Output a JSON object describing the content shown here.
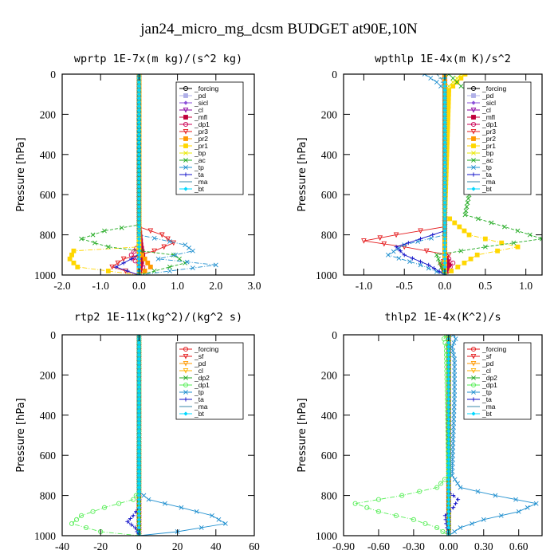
{
  "page_title": "jan24_micro_mg_dcsm  BUDGET at90E,10N",
  "colors": {
    "forcing": "#000000",
    "pd": "#b0b0e8",
    "sicl": "#8a4fd8",
    "cl": "#8a00a0",
    "mfl": "#c0003a",
    "dp1": "#cc0055",
    "pr3": "#e41a1c",
    "pr2": "#ff9900",
    "pr1": "#ffd700",
    "bp": "#e8e800",
    "ac": "#22aa22",
    "tp": "#1f8fcf",
    "ta": "#1010c8",
    "ma": "#3a8aaa",
    "bt": "#00d8ff",
    "sf": "#e41a1c",
    "cl_b": "#ffb000",
    "dp2": "#22aa22",
    "dp1_b": "#55ee55"
  },
  "chart_data": [
    {
      "type": "line",
      "title": "wprtp  1E-7x(m kg)/(s^2 kg)",
      "ylabel": "Pressure [hPa]",
      "xlim": [
        -2.0,
        3.0
      ],
      "ylim": [
        1000,
        0
      ],
      "xticks": [
        -2.0,
        -1.0,
        0.0,
        1.0,
        2.0,
        3.0
      ],
      "xtick_labels": [
        "-2.0",
        "-1.0",
        "0.0",
        "1.0",
        "2.0",
        "3.0"
      ],
      "yticks": [
        0,
        200,
        400,
        600,
        800,
        1000
      ],
      "ytick_labels": [
        "0",
        "200",
        "400",
        "600",
        "800",
        "1000"
      ],
      "legend_position": "top-right",
      "series": [
        {
          "name": "_forcing",
          "color": "#000000",
          "marker": "o",
          "p": [
            0,
            1000
          ],
          "v": [
            0,
            0
          ]
        },
        {
          "name": "_pd",
          "color": "#b0b0e8",
          "marker": "s",
          "p": [
            0,
            1000
          ],
          "v": [
            0,
            0
          ]
        },
        {
          "name": "_sicl",
          "color": "#8a4fd8",
          "marker": "d",
          "p": [
            0,
            1000
          ],
          "v": [
            0,
            0
          ]
        },
        {
          "name": "_cl",
          "color": "#8a00a0",
          "marker": "t",
          "p": [
            0,
            1000
          ],
          "v": [
            0,
            0
          ]
        },
        {
          "name": "_mfl",
          "color": "#c0003a",
          "marker": "s",
          "p": [
            0,
            750,
            850,
            900,
            950,
            1000
          ],
          "v": [
            0,
            0,
            0.05,
            0.1,
            0.05,
            0
          ]
        },
        {
          "name": "_dp1",
          "color": "#cc0055",
          "marker": "o",
          "p": [
            0,
            850,
            900,
            930,
            960,
            1000
          ],
          "v": [
            0,
            0,
            -0.2,
            -0.1,
            0.1,
            0
          ]
        },
        {
          "name": "_pr3",
          "color": "#e41a1c",
          "marker": "t",
          "p": [
            0,
            760,
            800,
            840,
            880,
            920,
            960,
            1000
          ],
          "v": [
            0,
            0,
            0.6,
            0.9,
            0.4,
            -0.4,
            -0.7,
            0
          ]
        },
        {
          "name": "_pr2",
          "color": "#ff9900",
          "marker": "s",
          "p": [
            0,
            880,
            920,
            960,
            1000
          ],
          "v": [
            0,
            0,
            0.15,
            0.3,
            0
          ]
        },
        {
          "name": "_pr1",
          "color": "#ffd700",
          "marker": "s",
          "p": [
            0,
            860,
            880,
            920,
            960,
            1000
          ],
          "v": [
            0,
            0,
            -1.7,
            -1.8,
            -1.6,
            0
          ]
        },
        {
          "name": "_bp",
          "color": "#e8e800",
          "marker": "x",
          "p": [
            0,
            1000
          ],
          "v": [
            0,
            0
          ]
        },
        {
          "name": "_ac",
          "color": "#22aa22",
          "marker": "x",
          "p": [
            0,
            750,
            780,
            820,
            860,
            900,
            940,
            1000
          ],
          "v": [
            0,
            0,
            -0.9,
            -1.5,
            -0.8,
            0.9,
            1.2,
            0
          ]
        },
        {
          "name": "_tp",
          "color": "#1f8fcf",
          "marker": "x",
          "p": [
            0,
            800,
            850,
            880,
            920,
            950,
            980,
            1000
          ],
          "v": [
            0,
            0,
            1.2,
            1.4,
            0.5,
            2.0,
            0.8,
            0
          ]
        },
        {
          "name": "_ta",
          "color": "#1010c8",
          "marker": "+",
          "p": [
            0,
            900,
            960,
            1000
          ],
          "v": [
            0,
            0,
            -0.6,
            0
          ]
        },
        {
          "name": "_ma",
          "color": "#3a8aaa",
          "marker": "-",
          "p": [
            0,
            1000
          ],
          "v": [
            0,
            0
          ]
        },
        {
          "name": "_bt",
          "color": "#00d8ff",
          "marker": "d",
          "p": [
            0,
            1000
          ],
          "v": [
            0,
            0
          ]
        }
      ]
    },
    {
      "type": "line",
      "title": "wpthlp  1E-4x(m K)/s^2",
      "ylabel": "Pressure [hPa]",
      "xlim": [
        -1.25,
        1.2
      ],
      "ylim": [
        1000,
        0
      ],
      "xticks": [
        -1.0,
        -0.5,
        0.0,
        0.5,
        1.0
      ],
      "xtick_labels": [
        "-1.0",
        "-0.5",
        "0.0",
        "0.5",
        "1.0"
      ],
      "yticks": [
        0,
        200,
        400,
        600,
        800,
        1000
      ],
      "ytick_labels": [
        "0",
        "200",
        "400",
        "600",
        "800",
        "1000"
      ],
      "legend_position": "top-right",
      "series": [
        {
          "name": "_forcing",
          "color": "#000000",
          "marker": "o",
          "p": [
            0,
            1000
          ],
          "v": [
            0,
            0
          ]
        },
        {
          "name": "_pd",
          "color": "#b0b0e8",
          "marker": "s",
          "p": [
            0,
            1000
          ],
          "v": [
            0,
            0
          ]
        },
        {
          "name": "_sicl",
          "color": "#8a4fd8",
          "marker": "d",
          "p": [
            0,
            1000
          ],
          "v": [
            0,
            0
          ]
        },
        {
          "name": "_cl",
          "color": "#8a00a0",
          "marker": "t",
          "p": [
            0,
            1000
          ],
          "v": [
            0,
            0
          ]
        },
        {
          "name": "_mfl",
          "color": "#c0003a",
          "marker": "s",
          "p": [
            0,
            900,
            950,
            1000
          ],
          "v": [
            0,
            0,
            0.05,
            0
          ]
        },
        {
          "name": "_dp1",
          "color": "#cc0055",
          "marker": "o",
          "p": [
            0,
            900,
            940,
            1000
          ],
          "v": [
            0,
            0,
            0.1,
            0
          ]
        },
        {
          "name": "_pr3",
          "color": "#e41a1c",
          "marker": "t",
          "p": [
            0,
            760,
            800,
            830,
            860,
            900,
            950,
            1000
          ],
          "v": [
            0,
            0,
            -0.6,
            -1.0,
            -0.5,
            0.05,
            -0.05,
            0
          ]
        },
        {
          "name": "_pr2",
          "color": "#ff9900",
          "marker": "s",
          "p": [
            0,
            1000
          ],
          "v": [
            0,
            0
          ]
        },
        {
          "name": "_pr1",
          "color": "#ffd700",
          "marker": "s",
          "p": [
            0,
            40,
            80,
            700,
            800,
            860,
            900,
            1000
          ],
          "v": [
            0.25,
            0.15,
            0.05,
            0,
            0.3,
            0.9,
            0.4,
            0
          ]
        },
        {
          "name": "_bp",
          "color": "#e8e800",
          "marker": "x",
          "p": [
            0,
            40,
            80,
            1000
          ],
          "v": [
            0.2,
            0.1,
            0,
            0
          ]
        },
        {
          "name": "_ac",
          "color": "#22aa22",
          "marker": "x",
          "p": [
            0,
            60,
            120,
            200,
            300,
            450,
            600,
            700,
            780,
            820,
            860,
            900,
            1000
          ],
          "v": [
            0.05,
            0.2,
            0.4,
            0.6,
            0.4,
            0.35,
            0.3,
            0.25,
            0.9,
            1.2,
            0.5,
            -0.1,
            0
          ]
        },
        {
          "name": "_tp",
          "color": "#1f8fcf",
          "marker": "x",
          "p": [
            0,
            40,
            80,
            800,
            850,
            900,
            950,
            1000
          ],
          "v": [
            -0.25,
            -0.1,
            0,
            0,
            -0.5,
            -0.7,
            -0.3,
            0
          ]
        },
        {
          "name": "_ta",
          "color": "#1010c8",
          "marker": "+",
          "p": [
            0,
            780,
            820,
            860,
            900,
            950,
            1000
          ],
          "v": [
            0,
            0,
            -0.3,
            -0.6,
            -0.5,
            -0.2,
            0
          ]
        },
        {
          "name": "_ma",
          "color": "#3a8aaa",
          "marker": "-",
          "p": [
            0,
            20,
            60,
            1000
          ],
          "v": [
            -0.1,
            -0.05,
            0,
            0
          ]
        },
        {
          "name": "_bt",
          "color": "#00d8ff",
          "marker": "d",
          "p": [
            0,
            1000
          ],
          "v": [
            0,
            0
          ]
        }
      ]
    },
    {
      "type": "line",
      "title": "rtp2  1E-11x(kg^2)/(kg^2 s)",
      "ylabel": "Pressure [hPa]",
      "xlim": [
        -40,
        60
      ],
      "ylim": [
        1000,
        0
      ],
      "xticks": [
        -40,
        -20,
        0,
        20,
        40,
        60
      ],
      "xtick_labels": [
        "-40",
        "-20",
        "0",
        "20",
        "40",
        "60"
      ],
      "yticks": [
        0,
        200,
        400,
        600,
        800,
        1000
      ],
      "ytick_labels": [
        "0",
        "200",
        "400",
        "600",
        "800",
        "1000"
      ],
      "legend_position": "top-right",
      "series": [
        {
          "name": "_forcing",
          "color": "#e41a1c",
          "marker": "o",
          "p": [
            0,
            1000
          ],
          "v": [
            0,
            0
          ]
        },
        {
          "name": "_sf",
          "color": "#e41a1c",
          "marker": "t",
          "p": [
            0,
            1000
          ],
          "v": [
            0,
            0
          ]
        },
        {
          "name": "_pd",
          "color": "#ff9900",
          "marker": "t",
          "p": [
            0,
            1000
          ],
          "v": [
            0,
            0
          ]
        },
        {
          "name": "_cl",
          "color": "#ffb000",
          "marker": "t",
          "p": [
            0,
            1000
          ],
          "v": [
            0,
            0
          ]
        },
        {
          "name": "_dp2",
          "color": "#22aa22",
          "marker": "x",
          "p": [
            0,
            1000
          ],
          "v": [
            0,
            0
          ]
        },
        {
          "name": "_dp1",
          "color": "#55ee55",
          "marker": "o",
          "p": [
            0,
            780,
            820,
            860,
            900,
            940,
            980,
            1000
          ],
          "v": [
            0,
            0,
            -3,
            -18,
            -30,
            -35,
            -20,
            0
          ]
        },
        {
          "name": "_tp",
          "color": "#1f8fcf",
          "marker": "x",
          "p": [
            0,
            780,
            820,
            860,
            900,
            940,
            980,
            1000
          ],
          "v": [
            0,
            0,
            5,
            22,
            38,
            45,
            20,
            0
          ]
        },
        {
          "name": "_ta",
          "color": "#1010c8",
          "marker": "+",
          "p": [
            0,
            860,
            900,
            930,
            960,
            1000
          ],
          "v": [
            0,
            0,
            -3,
            -6,
            -2,
            0
          ]
        },
        {
          "name": "_ma",
          "color": "#3a8aaa",
          "marker": "-",
          "p": [
            0,
            1000
          ],
          "v": [
            0,
            0
          ]
        },
        {
          "name": "_bt",
          "color": "#00d8ff",
          "marker": "d",
          "p": [
            0,
            1000
          ],
          "v": [
            0,
            0
          ]
        }
      ]
    },
    {
      "type": "line",
      "title": "thlp2  1E-4x(K^2)/s",
      "ylabel": "Pressure [hPa]",
      "xlim": [
        -0.9,
        0.8
      ],
      "ylim": [
        1000,
        0
      ],
      "xticks": [
        -0.9,
        -0.6,
        -0.3,
        0.0,
        0.3,
        0.6
      ],
      "xtick_labels": [
        "-0.90",
        "-0.60",
        "-0.30",
        "0.00",
        "0.30",
        "0.60"
      ],
      "yticks": [
        0,
        200,
        400,
        600,
        800,
        1000
      ],
      "ytick_labels": [
        "0",
        "200",
        "400",
        "600",
        "800",
        "1000"
      ],
      "legend_position": "top-right",
      "series": [
        {
          "name": "_forcing",
          "color": "#e41a1c",
          "marker": "o",
          "p": [
            0,
            1000
          ],
          "v": [
            0,
            0
          ]
        },
        {
          "name": "_sf",
          "color": "#e41a1c",
          "marker": "t",
          "p": [
            0,
            1000
          ],
          "v": [
            0,
            0
          ]
        },
        {
          "name": "_pd",
          "color": "#ff9900",
          "marker": "t",
          "p": [
            0,
            1000
          ],
          "v": [
            0,
            0
          ]
        },
        {
          "name": "_cl",
          "color": "#ffb000",
          "marker": "t",
          "p": [
            0,
            1000
          ],
          "v": [
            0,
            0
          ]
        },
        {
          "name": "_dp2",
          "color": "#22aa22",
          "marker": "x",
          "p": [
            0,
            1000
          ],
          "v": [
            0,
            0
          ]
        },
        {
          "name": "_dp1",
          "color": "#55ee55",
          "marker": "o",
          "p": [
            0,
            20,
            60,
            700,
            760,
            800,
            840,
            880,
            920,
            960,
            1000
          ],
          "v": [
            -0.02,
            -0.04,
            -0.02,
            0,
            -0.1,
            -0.4,
            -0.8,
            -0.6,
            -0.3,
            -0.1,
            0
          ]
        },
        {
          "name": "_tp",
          "color": "#1f8fcf",
          "marker": "x",
          "p": [
            0,
            20,
            60,
            120,
            300,
            500,
            700,
            760,
            800,
            840,
            880,
            920,
            960,
            1000
          ],
          "v": [
            0.04,
            0.06,
            0.03,
            0.05,
            0.05,
            0.04,
            0.03,
            0.1,
            0.4,
            0.75,
            0.6,
            0.3,
            0.1,
            0
          ]
        },
        {
          "name": "_ta",
          "color": "#1010c8",
          "marker": "+",
          "p": [
            0,
            780,
            820,
            860,
            900,
            940,
            1000
          ],
          "v": [
            0,
            0,
            0.08,
            0.04,
            -0.03,
            -0.02,
            0
          ]
        },
        {
          "name": "_ma",
          "color": "#3a8aaa",
          "marker": "-",
          "p": [
            0,
            1000
          ],
          "v": [
            0,
            0
          ]
        },
        {
          "name": "_bt",
          "color": "#00d8ff",
          "marker": "d",
          "p": [
            0,
            1000
          ],
          "v": [
            0,
            0
          ]
        }
      ]
    }
  ]
}
